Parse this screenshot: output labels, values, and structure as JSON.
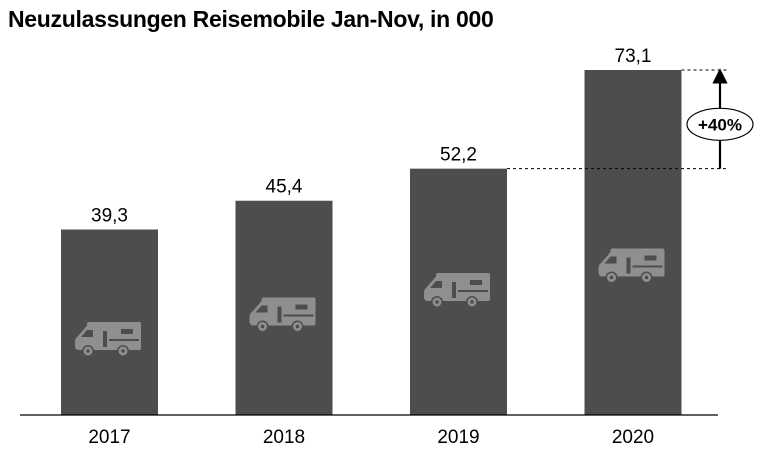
{
  "chart_data": {
    "type": "bar",
    "title": "Neuzulassungen Reisemobile Jan-Nov, in 000",
    "xlabel": "",
    "ylabel": "",
    "categories": [
      "2017",
      "2018",
      "2019",
      "2020"
    ],
    "values": [
      39.3,
      45.4,
      52.2,
      73.1
    ],
    "value_labels": [
      "39,3",
      "45,4",
      "52,2",
      "73,1"
    ],
    "ylim": [
      0,
      73.1
    ],
    "grid": false,
    "annotation": {
      "text": "+40%",
      "from_category": "2019",
      "to_category": "2020"
    },
    "icon": "camper-van-icon"
  },
  "colors": {
    "bar": "#4d4d4d",
    "icon": "#8f8f8f",
    "axis": "#000000"
  }
}
